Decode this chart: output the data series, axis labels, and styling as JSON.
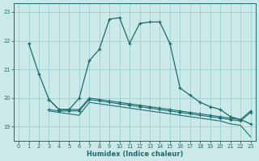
{
  "title": "",
  "xlabel": "Humidex (Indice chaleur)",
  "bg_color": "#cce9e9",
  "grid_color": "#9ecece",
  "line_color": "#1a6b6b",
  "xlim": [
    -0.5,
    23.5
  ],
  "ylim": [
    18.5,
    23.3
  ],
  "yticks": [
    19,
    20,
    21,
    22,
    23
  ],
  "xticks": [
    0,
    1,
    2,
    3,
    4,
    5,
    6,
    7,
    8,
    9,
    10,
    11,
    12,
    13,
    14,
    15,
    16,
    17,
    18,
    19,
    20,
    21,
    22,
    23
  ],
  "s1_x": [
    1,
    2,
    3,
    4,
    5,
    6,
    7,
    8,
    9,
    10,
    11,
    12,
    13,
    14,
    15,
    16,
    17,
    18,
    19,
    20,
    21,
    22,
    23
  ],
  "s1_y": [
    21.9,
    20.85,
    19.95,
    19.6,
    19.6,
    20.0,
    21.3,
    21.7,
    22.75,
    22.8,
    21.9,
    22.6,
    22.65,
    22.65,
    21.9,
    20.35,
    20.1,
    19.85,
    19.7,
    19.6,
    19.35,
    19.25,
    19.1
  ],
  "s2_x": [
    3,
    4,
    5,
    6,
    7,
    8,
    9,
    10,
    11,
    12,
    13,
    14,
    15,
    16,
    17,
    18,
    19,
    20,
    21,
    22,
    23
  ],
  "s2_y": [
    19.95,
    19.6,
    19.6,
    19.6,
    20.0,
    19.95,
    19.9,
    19.85,
    19.8,
    19.75,
    19.7,
    19.65,
    19.6,
    19.55,
    19.5,
    19.45,
    19.4,
    19.35,
    19.3,
    19.25,
    19.55
  ],
  "s3_x": [
    3,
    4,
    5,
    6,
    7,
    8,
    9,
    10,
    11,
    12,
    13,
    14,
    15,
    16,
    17,
    18,
    19,
    20,
    21,
    22,
    23
  ],
  "s3_y": [
    19.6,
    19.55,
    19.55,
    19.55,
    19.95,
    19.9,
    19.85,
    19.8,
    19.75,
    19.7,
    19.65,
    19.6,
    19.55,
    19.5,
    19.45,
    19.4,
    19.35,
    19.3,
    19.25,
    19.2,
    19.5
  ],
  "s4_x": [
    3,
    4,
    5,
    6,
    7,
    8,
    9,
    10,
    11,
    12,
    13,
    14,
    15,
    16,
    17,
    18,
    19,
    20,
    21,
    22,
    23
  ],
  "s4_y": [
    19.55,
    19.5,
    19.45,
    19.4,
    19.85,
    19.8,
    19.75,
    19.7,
    19.65,
    19.6,
    19.55,
    19.5,
    19.45,
    19.4,
    19.35,
    19.3,
    19.25,
    19.2,
    19.1,
    19.05,
    18.65
  ]
}
